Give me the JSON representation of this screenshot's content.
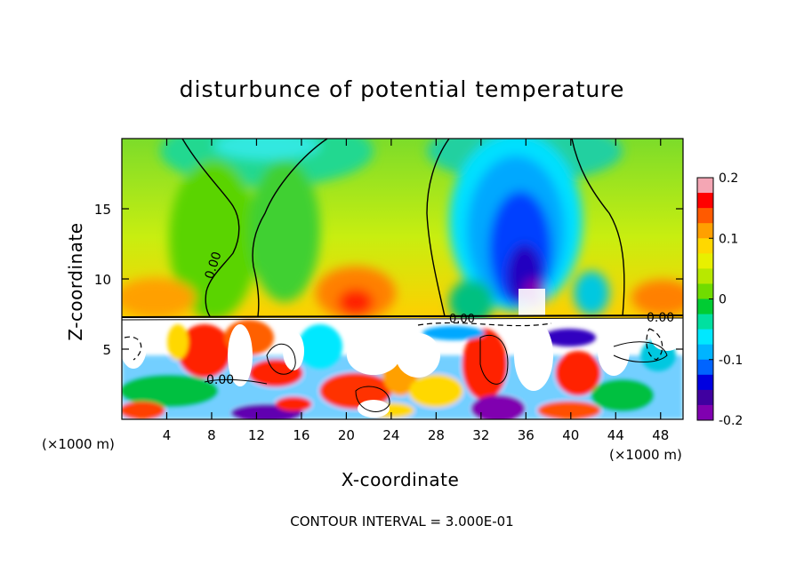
{
  "chart_data": {
    "type": "heatmap",
    "title": "disturbunce of potential temperature",
    "xlabel": "X-coordinate",
    "ylabel": "Z-coordinate",
    "x_unit_label": "(×1000 m)",
    "x_ticks": [
      4,
      8,
      12,
      16,
      20,
      24,
      28,
      32,
      36,
      40,
      44,
      48
    ],
    "y_ticks": [
      5,
      10,
      15
    ],
    "xlim": [
      0,
      50
    ],
    "ylim": [
      0,
      20
    ],
    "colorbar": {
      "ticks": [
        "0.2",
        "0.1",
        "0",
        "-0.1",
        "-0.2"
      ],
      "range": [
        -0.2,
        0.2
      ],
      "colors": [
        "#f4a6b4",
        "#ff0000",
        "#ff5a00",
        "#ffa000",
        "#ffd800",
        "#e8f000",
        "#b8e800",
        "#70dc00",
        "#00cc33",
        "#00e0a0",
        "#00e8ff",
        "#00b4ff",
        "#0064ff",
        "#0000e0",
        "#4000a0",
        "#8000b0"
      ]
    },
    "contour_labels": [
      "0.00",
      "0.00",
      "0.00",
      "0.00"
    ],
    "contour_interval": "CONTOUR INTERVAL = 3.000E-01",
    "interface_height_km": 7.3
  }
}
